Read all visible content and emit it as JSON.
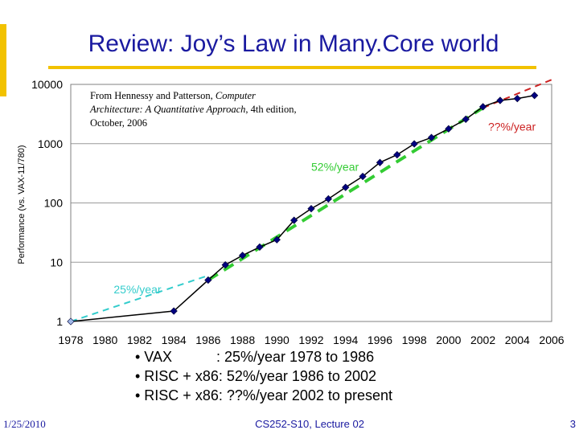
{
  "slide": {
    "title": "Review: Joy’s Law in Many.Core world",
    "footer_date": "1/25/2010",
    "footer_lecture": "CS252-S10, Lecture 02",
    "footer_page": "3",
    "accent_color": "#f2c200",
    "title_color": "#1a1aa0"
  },
  "source_note": {
    "prefix": "From Hennessy and Patterson, ",
    "italic": "Computer Architecture: A Quantitative Approach",
    "suffix": ", 4th edition, October, 2006"
  },
  "bullets": [
    "• VAX           : 25%/year 1978 to 1986",
    "• RISC + x86: 52%/year 1986 to 2002",
    "• RISC + x86: ??%/year 2002 to present"
  ],
  "chart_data": {
    "type": "line",
    "title": "",
    "ylabel": "Performance (vs. VAX-11/780)",
    "xlabel": "",
    "yscale": "log",
    "ylim": [
      1,
      10000
    ],
    "xlim": [
      1978,
      2006
    ],
    "y_ticks": [
      1,
      10,
      100,
      1000,
      10000
    ],
    "y_tick_labels": [
      "1",
      "10",
      "100",
      "1000",
      "10000"
    ],
    "x_ticks": [
      1978,
      1980,
      1982,
      1984,
      1986,
      1988,
      1990,
      1992,
      1994,
      1996,
      1998,
      2000,
      2002,
      2004,
      2006
    ],
    "grid": "horizontal",
    "series": [
      {
        "name": "Performance",
        "color": "#00007f",
        "x": [
          1978,
          1984,
          1986,
          1987,
          1988,
          1989,
          1990,
          1991,
          1992,
          1993,
          1994,
          1995,
          1996,
          1997,
          1998,
          1999,
          2000,
          2001,
          2002,
          2003,
          2004,
          2005
        ],
        "y": [
          1,
          1.5,
          5,
          9,
          13,
          18,
          24,
          51,
          80,
          117,
          183,
          280,
          481,
          649,
          993,
          1267,
          1779,
          2584,
          4195,
          5364,
          5764,
          6505
        ]
      }
    ],
    "trend_lines": [
      {
        "label": "25%/year",
        "color": "#33cccc",
        "x": [
          1978,
          1986
        ],
        "y": [
          1,
          5.96
        ],
        "label_x": 1980.5,
        "label_y": 3.0
      },
      {
        "label": "52%/year",
        "color": "#33cc33",
        "x": [
          1986,
          2002
        ],
        "y": [
          5,
          4021
        ],
        "label_x": 1992,
        "label_y": 350
      },
      {
        "label": "??%/year",
        "color": "#cc2222",
        "x": [
          2002,
          2006
        ],
        "y": [
          4021,
          12000
        ],
        "label_x": 2002.3,
        "label_y": 1650
      }
    ]
  }
}
